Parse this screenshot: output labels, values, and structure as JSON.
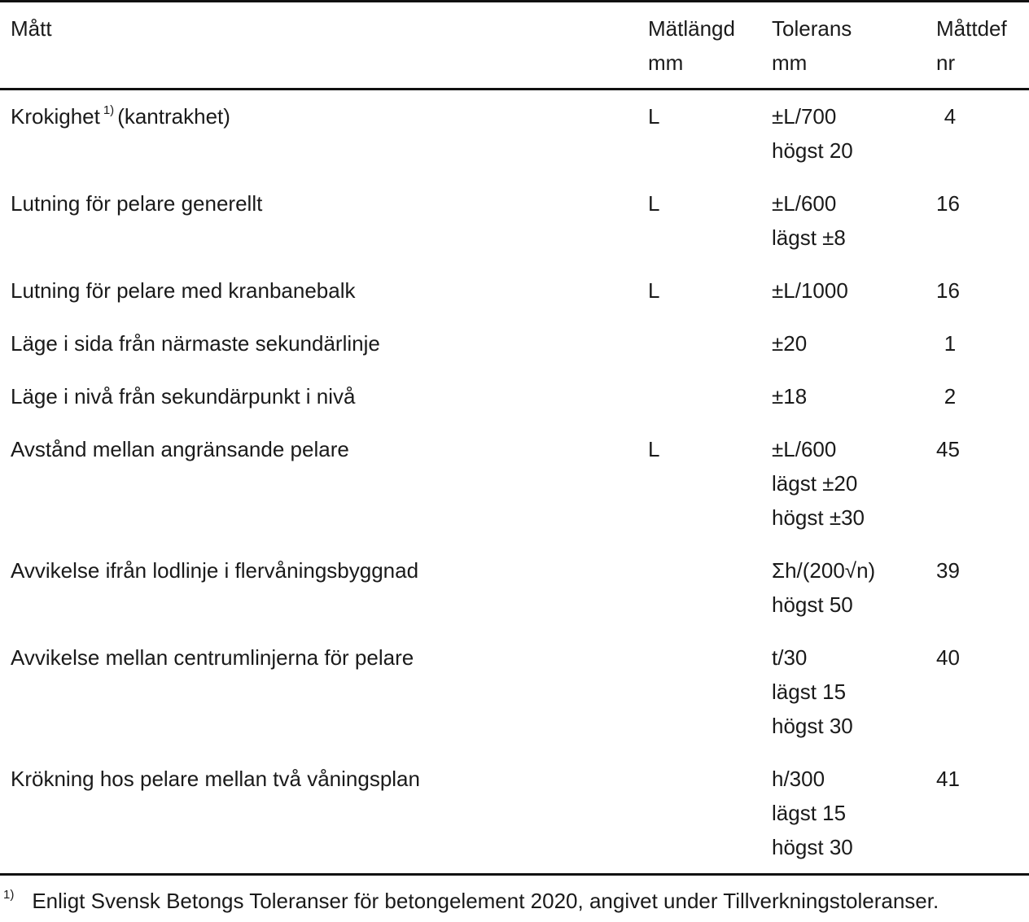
{
  "header": {
    "col_matt": "Mått",
    "col_langd": [
      "Mätlängd",
      "mm"
    ],
    "col_tol": [
      "Tolerans",
      "mm"
    ],
    "col_def": [
      "Måttdef",
      "nr"
    ]
  },
  "rows": [
    {
      "label": "Krokighet",
      "footnote_mark": "1)",
      "label_suffix": "(kantrakhet)",
      "langd": "L",
      "tol": [
        "±L/700",
        "högst 20"
      ],
      "def": "4"
    },
    {
      "label": "Lutning för pelare generellt",
      "langd": "L",
      "tol": [
        "±L/600",
        "lägst ±8"
      ],
      "def": "16"
    },
    {
      "label": "Lutning för pelare med kranbanebalk",
      "langd": "L",
      "tol": [
        "±L/1000"
      ],
      "def": "16"
    },
    {
      "label": "Läge i sida från närmaste sekundärlinje",
      "langd": "",
      "tol": [
        "±20"
      ],
      "def": "1"
    },
    {
      "label": "Läge i nivå från sekundärpunkt i nivå",
      "langd": "",
      "tol": [
        "±18"
      ],
      "def": "2"
    },
    {
      "label": "Avstånd mellan angränsande pelare",
      "langd": "L",
      "tol": [
        "±L/600",
        "lägst ±20",
        "högst ±30"
      ],
      "def": "45"
    },
    {
      "label": "Avvikelse ifrån lodlinje i flervåningsbyggnad",
      "langd": "",
      "tol": [
        "Σh/(200√n)",
        "högst 50"
      ],
      "def": "39"
    },
    {
      "label": "Avvikelse mellan centrumlinjerna för pelare",
      "langd": "",
      "tol": [
        "t/30",
        "lägst 15",
        "högst 30"
      ],
      "def": "40"
    },
    {
      "label": "Krökning hos pelare mellan två våningsplan",
      "langd": "",
      "tol": [
        "h/300",
        "lägst 15",
        "högst 30"
      ],
      "def": "41"
    }
  ],
  "footnote": {
    "mark": "1)",
    "text": "Enligt Svensk Betongs Toleranser för betongelement 2020, angivet under Tillverkningstoleranser."
  }
}
